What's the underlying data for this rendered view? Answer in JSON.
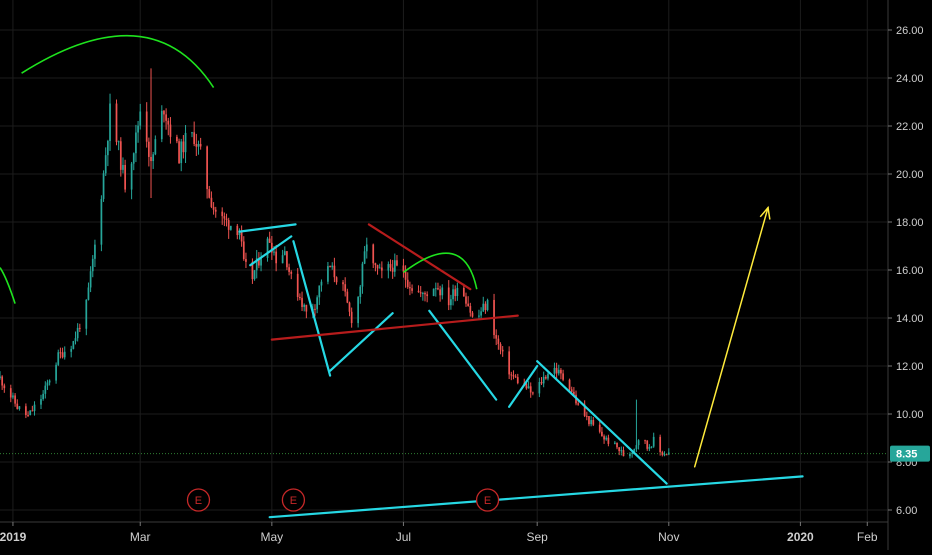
{
  "chart_data": {
    "type": "candlestick",
    "title": "",
    "xlabel": "",
    "ylabel": "",
    "grid": true,
    "ylim": [
      5.7,
      27.0
    ],
    "xlim": [
      "2018-12-26",
      "2020-03-02"
    ],
    "y_ticks": [
      6,
      8,
      10,
      12,
      14,
      16,
      18,
      20,
      22,
      24,
      26
    ],
    "y_tick_labels": [
      "6.00",
      "8.00",
      "10.00",
      "12.00",
      "14.00",
      "16.00",
      "18.00",
      "20.00",
      "22.00",
      "24.00",
      "26.00"
    ],
    "x_ticks": [
      {
        "date": "2019-01-01",
        "label": "2019",
        "bold": true
      },
      {
        "date": "2019-03-01",
        "label": "Mar",
        "bold": false
      },
      {
        "date": "2019-05-01",
        "label": "May",
        "bold": false
      },
      {
        "date": "2019-07-01",
        "label": "Jul",
        "bold": false
      },
      {
        "date": "2019-09-01",
        "label": "Sep",
        "bold": false
      },
      {
        "date": "2019-11-01",
        "label": "Nov",
        "bold": false
      },
      {
        "date": "2020-01-01",
        "label": "2020",
        "bold": true
      },
      {
        "date": "2020-02-01",
        "label": "Feb",
        "bold": false
      }
    ],
    "last_price": 8.35,
    "last_price_label": "8.35",
    "colors": {
      "up": "#26a69a",
      "down": "#ef5350",
      "background": "#000000",
      "grid": "#1c1c1c",
      "axis_text": "#cfcfcf",
      "price_line": "#2e7d32",
      "price_badge": "#26a69a",
      "event_marker": "#c62828",
      "cyan": "#26d8e4",
      "darkred": "#b71c1c",
      "green": "#1ee31e",
      "yellow": "#ffeb3b"
    },
    "price_path": [
      [
        "2018-12-26",
        11.5
      ],
      [
        "2019-01-03",
        10.3
      ],
      [
        "2019-01-08",
        9.9
      ],
      [
        "2019-01-15",
        10.8
      ],
      [
        "2019-01-22",
        12.4
      ],
      [
        "2019-01-29",
        13.0
      ],
      [
        "2019-02-04",
        14.5
      ],
      [
        "2019-02-08",
        17.0
      ],
      [
        "2019-02-12",
        20.0
      ],
      [
        "2019-02-15",
        22.6
      ],
      [
        "2019-02-19",
        21.0
      ],
      [
        "2019-02-22",
        19.6
      ],
      [
        "2019-02-27",
        21.5
      ],
      [
        "2019-03-01",
        22.7
      ],
      [
        "2019-03-04",
        21.6
      ],
      [
        "2019-03-06",
        20.3
      ],
      [
        "2019-03-08",
        21.3
      ],
      [
        "2019-03-12",
        22.8
      ],
      [
        "2019-03-15",
        21.8
      ],
      [
        "2019-03-19",
        20.8
      ],
      [
        "2019-03-22",
        21.4
      ],
      [
        "2019-03-26",
        21.6
      ],
      [
        "2019-03-29",
        20.8
      ],
      [
        "2019-04-01",
        19.5
      ],
      [
        "2019-04-04",
        18.6
      ],
      [
        "2019-04-08",
        18.1
      ],
      [
        "2019-04-12",
        17.9
      ],
      [
        "2019-04-16",
        17.7
      ],
      [
        "2019-04-18",
        16.2
      ],
      [
        "2019-04-22",
        15.7
      ],
      [
        "2019-04-26",
        16.7
      ],
      [
        "2019-04-30",
        17.3
      ],
      [
        "2019-05-03",
        16.5
      ],
      [
        "2019-05-07",
        16.8
      ],
      [
        "2019-05-10",
        15.6
      ],
      [
        "2019-05-14",
        14.9
      ],
      [
        "2019-05-17",
        14.2
      ],
      [
        "2019-05-21",
        14.6
      ],
      [
        "2019-05-24",
        15.6
      ],
      [
        "2019-05-28",
        16.1
      ],
      [
        "2019-05-31",
        15.7
      ],
      [
        "2019-06-03",
        15.2
      ],
      [
        "2019-06-06",
        14.2
      ],
      [
        "2019-06-08",
        13.8
      ],
      [
        "2019-06-11",
        15.4
      ],
      [
        "2019-06-14",
        17.2
      ],
      [
        "2019-06-17",
        16.1
      ],
      [
        "2019-06-21",
        15.8
      ],
      [
        "2019-06-26",
        16.2
      ],
      [
        "2019-07-01",
        15.8
      ],
      [
        "2019-07-05",
        15.3
      ],
      [
        "2019-07-10",
        14.9
      ],
      [
        "2019-07-16",
        15.4
      ],
      [
        "2019-07-22",
        14.7
      ],
      [
        "2019-07-27",
        15.5
      ],
      [
        "2019-07-31",
        14.6
      ],
      [
        "2019-08-03",
        13.7
      ],
      [
        "2019-08-06",
        14.3
      ],
      [
        "2019-08-09",
        14.6
      ],
      [
        "2019-08-13",
        13.1
      ],
      [
        "2019-08-16",
        12.4
      ],
      [
        "2019-08-20",
        11.6
      ],
      [
        "2019-08-26",
        11.2
      ],
      [
        "2019-08-30",
        10.8
      ],
      [
        "2019-09-04",
        11.5
      ],
      [
        "2019-09-08",
        12.0
      ],
      [
        "2019-09-12",
        11.6
      ],
      [
        "2019-09-16",
        11.2
      ],
      [
        "2019-09-20",
        10.3
      ],
      [
        "2019-09-26",
        9.6
      ],
      [
        "2019-10-02",
        9.0
      ],
      [
        "2019-10-08",
        8.6
      ],
      [
        "2019-10-12",
        8.2
      ],
      [
        "2019-10-16",
        8.6
      ],
      [
        "2019-10-19",
        9.2
      ],
      [
        "2019-10-22",
        8.6
      ],
      [
        "2019-10-25",
        8.9
      ],
      [
        "2019-10-28",
        8.4
      ],
      [
        "2019-11-02",
        8.35
      ]
    ],
    "spikes": [
      {
        "date": "2019-02-09",
        "high": 25.1,
        "low": 17.8
      },
      {
        "date": "2019-03-06",
        "high": 24.4,
        "low": 19.0
      },
      {
        "date": "2019-08-11",
        "high": 15.6,
        "low": 12.4
      },
      {
        "date": "2019-10-17",
        "high": 10.6,
        "low": 8.6
      }
    ],
    "annotations": [
      {
        "kind": "line",
        "color": "cyan",
        "points": [
          [
            "2019-04-16",
            17.6
          ],
          [
            "2019-05-12",
            17.9
          ]
        ]
      },
      {
        "kind": "line",
        "color": "cyan",
        "points": [
          [
            "2019-04-21",
            16.2
          ],
          [
            "2019-05-10",
            17.4
          ]
        ]
      },
      {
        "kind": "line",
        "color": "cyan",
        "points": [
          [
            "2019-05-11",
            17.2
          ],
          [
            "2019-05-28",
            11.6
          ]
        ]
      },
      {
        "kind": "line",
        "color": "cyan",
        "points": [
          [
            "2019-05-28",
            11.8
          ],
          [
            "2019-06-26",
            14.2
          ]
        ]
      },
      {
        "kind": "line",
        "color": "cyan",
        "points": [
          [
            "2019-07-13",
            14.3
          ],
          [
            "2019-08-13",
            10.6
          ]
        ]
      },
      {
        "kind": "line",
        "color": "cyan",
        "points": [
          [
            "2019-08-19",
            10.3
          ],
          [
            "2019-09-01",
            12.0
          ]
        ]
      },
      {
        "kind": "line",
        "color": "cyan",
        "points": [
          [
            "2019-09-01",
            12.2
          ],
          [
            "2019-10-31",
            7.1
          ]
        ]
      },
      {
        "kind": "line",
        "color": "cyan",
        "points": [
          [
            "2019-04-30",
            5.7
          ],
          [
            "2020-01-02",
            7.4
          ]
        ]
      },
      {
        "kind": "line",
        "color": "darkred",
        "points": [
          [
            "2019-05-01",
            13.1
          ],
          [
            "2019-08-23",
            14.1
          ]
        ]
      },
      {
        "kind": "line",
        "color": "darkred",
        "points": [
          [
            "2019-06-15",
            17.9
          ],
          [
            "2019-08-01",
            15.2
          ]
        ]
      },
      {
        "kind": "curve",
        "color": "green",
        "points": [
          [
            "2019-01-05",
            24.2
          ],
          [
            "2019-03-06",
            27.6
          ],
          [
            "2019-04-04",
            23.6
          ]
        ]
      },
      {
        "kind": "curve",
        "color": "green",
        "points": [
          [
            "2019-07-01",
            15.9
          ],
          [
            "2019-07-29",
            17.8
          ],
          [
            "2019-08-04",
            15.2
          ]
        ]
      },
      {
        "kind": "curve",
        "color": "green",
        "points": [
          [
            "2018-12-26",
            16.1
          ],
          [
            "2018-12-29",
            15.7
          ],
          [
            "2019-01-02",
            14.6
          ]
        ]
      },
      {
        "kind": "arrow",
        "color": "yellow",
        "points": [
          [
            "2019-11-13",
            7.8
          ],
          [
            "2019-12-17",
            18.6
          ]
        ]
      }
    ],
    "event_markers": [
      {
        "date": "2019-03-28",
        "label": "E"
      },
      {
        "date": "2019-05-11",
        "label": "E"
      },
      {
        "date": "2019-08-09",
        "label": "E"
      }
    ]
  }
}
